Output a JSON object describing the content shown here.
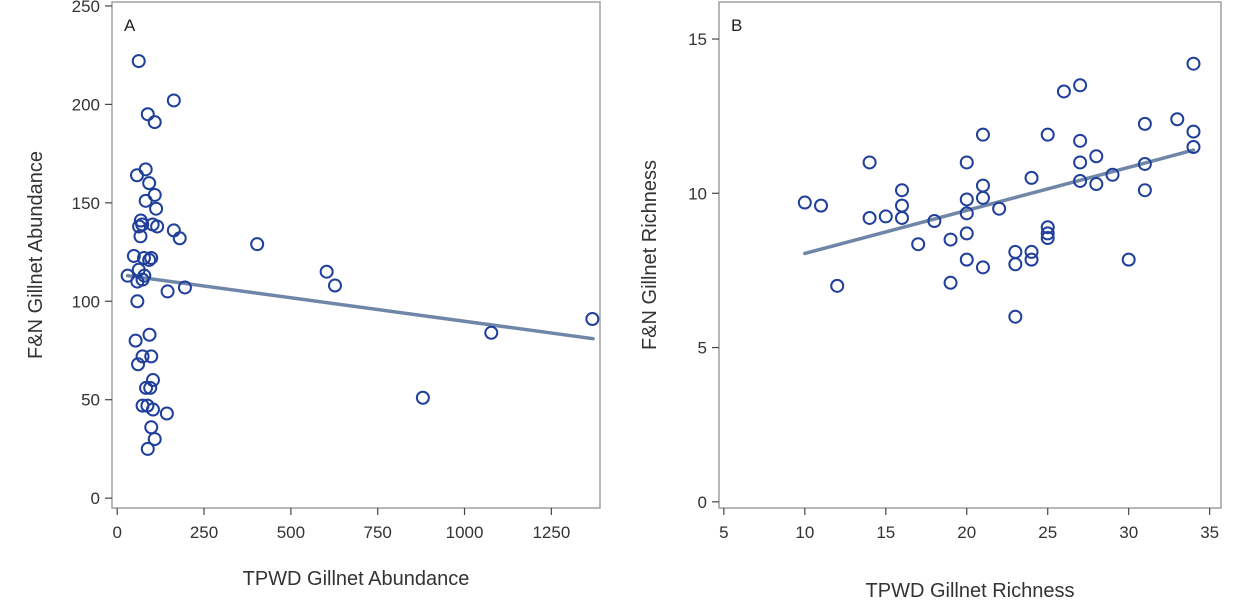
{
  "colors": {
    "marker": "#1f3f9a",
    "fit": "#6f86a8",
    "frame": "#a0a0a0",
    "text": "#333333"
  },
  "chart_data": [
    {
      "type": "scatter",
      "panel_label": "A",
      "xlabel": "TPWD Gillnet Abundance",
      "ylabel": "F&N Gillnet Abundance",
      "xlim": [
        -15,
        1390
      ],
      "ylim": [
        -5,
        252
      ],
      "xticks": [
        0,
        250,
        500,
        750,
        1000,
        1250
      ],
      "yticks": [
        0,
        50,
        100,
        150,
        200,
        250
      ],
      "points": [
        {
          "x": 62,
          "y": 222
        },
        {
          "x": 163,
          "y": 202
        },
        {
          "x": 88,
          "y": 195
        },
        {
          "x": 108,
          "y": 191
        },
        {
          "x": 82,
          "y": 167
        },
        {
          "x": 57,
          "y": 164
        },
        {
          "x": 92,
          "y": 160
        },
        {
          "x": 108,
          "y": 154
        },
        {
          "x": 82,
          "y": 151
        },
        {
          "x": 112,
          "y": 147
        },
        {
          "x": 68,
          "y": 141
        },
        {
          "x": 63,
          "y": 138
        },
        {
          "x": 72,
          "y": 139
        },
        {
          "x": 102,
          "y": 139
        },
        {
          "x": 115,
          "y": 138
        },
        {
          "x": 163,
          "y": 136
        },
        {
          "x": 67,
          "y": 133
        },
        {
          "x": 180,
          "y": 132
        },
        {
          "x": 77,
          "y": 122
        },
        {
          "x": 92,
          "y": 121
        },
        {
          "x": 98,
          "y": 122
        },
        {
          "x": 48,
          "y": 123
        },
        {
          "x": 62,
          "y": 116
        },
        {
          "x": 78,
          "y": 113
        },
        {
          "x": 73,
          "y": 111
        },
        {
          "x": 30,
          "y": 113
        },
        {
          "x": 58,
          "y": 110
        },
        {
          "x": 195,
          "y": 107
        },
        {
          "x": 145,
          "y": 105
        },
        {
          "x": 403,
          "y": 129
        },
        {
          "x": 603,
          "y": 115
        },
        {
          "x": 627,
          "y": 108
        },
        {
          "x": 58,
          "y": 100
        },
        {
          "x": 93,
          "y": 83
        },
        {
          "x": 53,
          "y": 80
        },
        {
          "x": 73,
          "y": 72
        },
        {
          "x": 98,
          "y": 72
        },
        {
          "x": 60,
          "y": 68
        },
        {
          "x": 103,
          "y": 60
        },
        {
          "x": 83,
          "y": 56
        },
        {
          "x": 95,
          "y": 56
        },
        {
          "x": 73,
          "y": 47
        },
        {
          "x": 87,
          "y": 47
        },
        {
          "x": 103,
          "y": 45
        },
        {
          "x": 143,
          "y": 43
        },
        {
          "x": 98,
          "y": 36
        },
        {
          "x": 108,
          "y": 30
        },
        {
          "x": 88,
          "y": 25
        },
        {
          "x": 880,
          "y": 51
        },
        {
          "x": 1077,
          "y": 84
        },
        {
          "x": 1368,
          "y": 91
        }
      ],
      "fit_line": {
        "x": [
          30,
          1370
        ],
        "y": [
          113,
          81
        ]
      }
    },
    {
      "type": "scatter",
      "panel_label": "B",
      "xlabel": "TPWD Gillnet Richness",
      "ylabel": "F&N Gillnet Richness",
      "xlim": [
        4.7,
        35.7
      ],
      "ylim": [
        -0.2,
        16.2
      ],
      "xticks": [
        5,
        10,
        15,
        20,
        25,
        30,
        35
      ],
      "yticks": [
        0,
        5,
        10,
        15
      ],
      "points": [
        {
          "x": 10,
          "y": 9.7
        },
        {
          "x": 11,
          "y": 9.6
        },
        {
          "x": 12,
          "y": 7.0
        },
        {
          "x": 14,
          "y": 11.0
        },
        {
          "x": 14,
          "y": 9.2
        },
        {
          "x": 15,
          "y": 9.25
        },
        {
          "x": 16,
          "y": 10.1
        },
        {
          "x": 16,
          "y": 9.6
        },
        {
          "x": 16,
          "y": 9.2
        },
        {
          "x": 17,
          "y": 8.35
        },
        {
          "x": 18,
          "y": 9.1
        },
        {
          "x": 19,
          "y": 8.5
        },
        {
          "x": 19,
          "y": 7.1
        },
        {
          "x": 20,
          "y": 11.0
        },
        {
          "x": 20,
          "y": 9.8
        },
        {
          "x": 20,
          "y": 9.35
        },
        {
          "x": 20,
          "y": 8.7
        },
        {
          "x": 20,
          "y": 7.85
        },
        {
          "x": 21,
          "y": 11.9
        },
        {
          "x": 21,
          "y": 10.25
        },
        {
          "x": 21,
          "y": 9.85
        },
        {
          "x": 21,
          "y": 7.6
        },
        {
          "x": 22,
          "y": 9.5
        },
        {
          "x": 23,
          "y": 8.1
        },
        {
          "x": 23,
          "y": 7.7
        },
        {
          "x": 23,
          "y": 6.0
        },
        {
          "x": 24,
          "y": 10.5
        },
        {
          "x": 24,
          "y": 8.1
        },
        {
          "x": 24,
          "y": 7.85
        },
        {
          "x": 25,
          "y": 11.9
        },
        {
          "x": 25,
          "y": 8.9
        },
        {
          "x": 25,
          "y": 8.7
        },
        {
          "x": 25,
          "y": 8.55
        },
        {
          "x": 26,
          "y": 13.3
        },
        {
          "x": 27,
          "y": 13.5
        },
        {
          "x": 27,
          "y": 11.7
        },
        {
          "x": 27,
          "y": 11.0
        },
        {
          "x": 27,
          "y": 10.4
        },
        {
          "x": 28,
          "y": 11.2
        },
        {
          "x": 28,
          "y": 10.3
        },
        {
          "x": 29,
          "y": 10.6
        },
        {
          "x": 30,
          "y": 7.85
        },
        {
          "x": 31,
          "y": 12.25
        },
        {
          "x": 31,
          "y": 10.95
        },
        {
          "x": 31,
          "y": 10.1
        },
        {
          "x": 33,
          "y": 12.4
        },
        {
          "x": 34,
          "y": 14.2
        },
        {
          "x": 34,
          "y": 12.0
        },
        {
          "x": 34,
          "y": 11.5
        }
      ],
      "fit_line": {
        "x": [
          10,
          34
        ],
        "y": [
          8.05,
          11.4
        ]
      }
    }
  ]
}
